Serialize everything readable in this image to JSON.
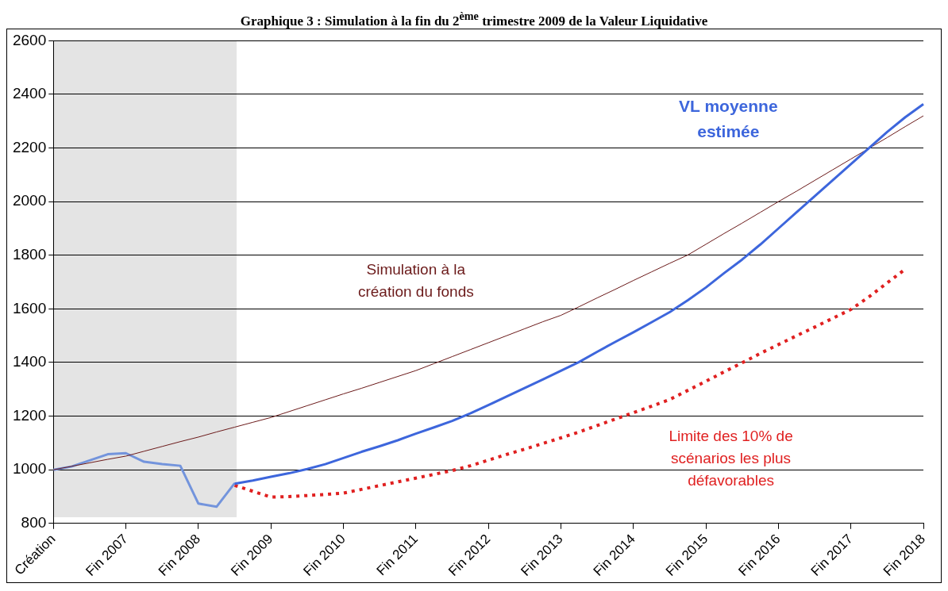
{
  "chart_data": {
    "type": "line",
    "title": "Graphique 3 : Simulation à la fin du 2$^{ème}$ trimestre 2009 de la Valeur Liquidative",
    "categories": [
      "Création",
      null,
      null,
      null,
      "Fin 2007",
      null,
      null,
      null,
      "Fin 2008",
      null,
      null,
      null,
      "Fin 2009",
      null,
      null,
      null,
      "Fin 2010",
      null,
      null,
      null,
      "Fin 2011",
      null,
      null,
      null,
      "Fin 2012",
      null,
      null,
      null,
      "Fin 2013",
      null,
      null,
      null,
      "Fin 2014",
      null,
      null,
      null,
      "Fin 2015",
      null,
      null,
      null,
      "Fin 2016",
      null,
      null,
      null,
      "Fin 2017",
      null,
      null,
      null,
      "Fin 2018"
    ],
    "ylim": [
      800,
      2600
    ],
    "yticks": [
      800,
      1000,
      1200,
      1400,
      1600,
      1800,
      2000,
      2200,
      2400,
      2600
    ],
    "grid": "y",
    "legend": false,
    "series": [
      {
        "name": "VL moyenne estimée",
        "color": "#3d66dc",
        "line_style": "solid",
        "values": [
          null,
          null,
          null,
          null,
          null,
          null,
          null,
          null,
          null,
          null,
          948,
          960,
          974,
          987,
          1003,
          1021,
          1044,
          1067,
          1088,
          1110,
          1135,
          1158,
          1182,
          1210,
          1241,
          1273,
          1305,
          1337,
          1369,
          1402,
          1440,
          1477,
          1513,
          1550,
          1588,
          1632,
          1680,
          1733,
          1784,
          1840,
          1900,
          1960,
          2020,
          2080,
          2140,
          2200,
          2260,
          2315,
          2364
        ]
      },
      {
        "name": "Simulation à la création du fonds",
        "color": "#6b1a1a",
        "line_style": "solid",
        "values": [
          1000,
          1013,
          1026,
          1039,
          1051,
          1069,
          1087,
          1105,
          1122,
          1141,
          1159,
          1177,
          1195,
          1217,
          1239,
          1261,
          1283,
          1304,
          1326,
          1348,
          1370,
          1396,
          1422,
          1448,
          1474,
          1500,
          1526,
          1552,
          1576,
          1608,
          1641,
          1673,
          1706,
          1738,
          1770,
          1801,
          1841,
          1881,
          1920,
          1960,
          2000,
          2039,
          2079,
          2119,
          2159,
          2199,
          2239,
          2280,
          2320
        ]
      },
      {
        "name": "Limite des 10% de scénarios les plus défavorables",
        "color": "#e02020",
        "line_style": "dotted",
        "values": [
          null,
          null,
          null,
          null,
          null,
          null,
          null,
          null,
          null,
          null,
          942,
          920,
          898,
          900,
          904,
          908,
          913,
          927,
          941,
          955,
          969,
          983,
          997,
          1015,
          1036,
          1057,
          1077,
          1098,
          1119,
          1141,
          1165,
          1189,
          1213,
          1237,
          1262,
          1296,
          1330,
          1365,
          1399,
          1434,
          1467,
          1500,
          1532,
          1565,
          1598,
          1645,
          1697,
          1748,
          null
        ]
      },
      {
        "color": "#7394dc",
        "line_style": "solid",
        "values": [
          1000,
          1012,
          1035,
          1058,
          1062,
          1030,
          1021,
          1015,
          874,
          862,
          950,
          null,
          null,
          null,
          null,
          null,
          null,
          null,
          null,
          null,
          null,
          null,
          null,
          null,
          null,
          null,
          null,
          null,
          null,
          null,
          null,
          null,
          null,
          null,
          null,
          null,
          null,
          null,
          null,
          null,
          null,
          null,
          null,
          null,
          null,
          null,
          null,
          null,
          null
        ]
      }
    ]
  }
}
